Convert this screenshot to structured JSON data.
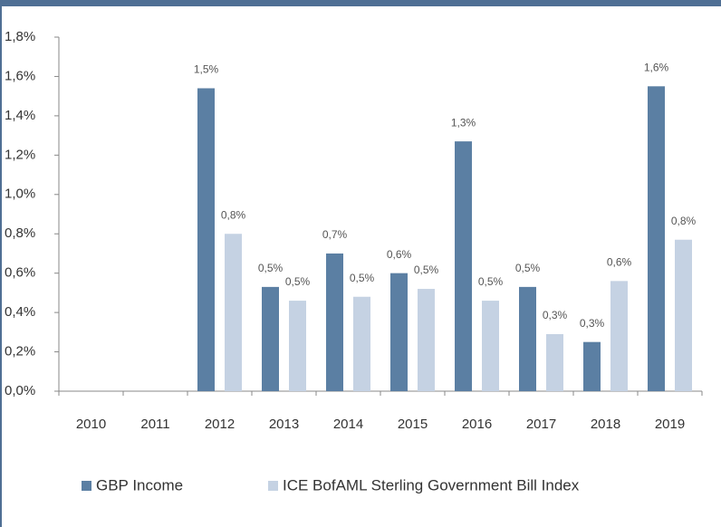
{
  "chart_data": {
    "type": "bar",
    "categories": [
      "2010",
      "2011",
      "2012",
      "2013",
      "2014",
      "2015",
      "2016",
      "2017",
      "2018",
      "2019"
    ],
    "series": [
      {
        "name": "GBP Income",
        "color": "#5b7fa3",
        "values": [
          null,
          null,
          1.54,
          0.53,
          0.7,
          0.6,
          1.27,
          0.53,
          0.25,
          1.55
        ],
        "value_labels": [
          null,
          null,
          "1,5%",
          "0,5%",
          "0,7%",
          "0,6%",
          "1,3%",
          "0,5%",
          "0,3%",
          "1,6%"
        ]
      },
      {
        "name": "ICE BofAML Sterling Government Bill Index",
        "color": "#c5d2e3",
        "values": [
          null,
          null,
          0.8,
          0.46,
          0.48,
          0.52,
          0.46,
          0.29,
          0.56,
          0.77
        ],
        "value_labels": [
          null,
          null,
          "0,8%",
          "0,5%",
          "0,5%",
          "0,5%",
          "0,5%",
          "0,3%",
          "0,6%",
          "0,8%"
        ]
      }
    ],
    "ylim": [
      0,
      1.8
    ],
    "yticks": [
      {
        "value": 0,
        "label": "0,0%"
      },
      {
        "value": 0.2,
        "label": "0,2%"
      },
      {
        "value": 0.4,
        "label": "0,4%"
      },
      {
        "value": 0.6,
        "label": "0,6%"
      },
      {
        "value": 0.8,
        "label": "0,8%"
      },
      {
        "value": 1.0,
        "label": "1,0%"
      },
      {
        "value": 1.2,
        "label": "1,2%"
      },
      {
        "value": 1.4,
        "label": "1,4%"
      },
      {
        "value": 1.6,
        "label": "1,6%"
      },
      {
        "value": 1.8,
        "label": "1,8%"
      }
    ],
    "legend": "bottom"
  }
}
